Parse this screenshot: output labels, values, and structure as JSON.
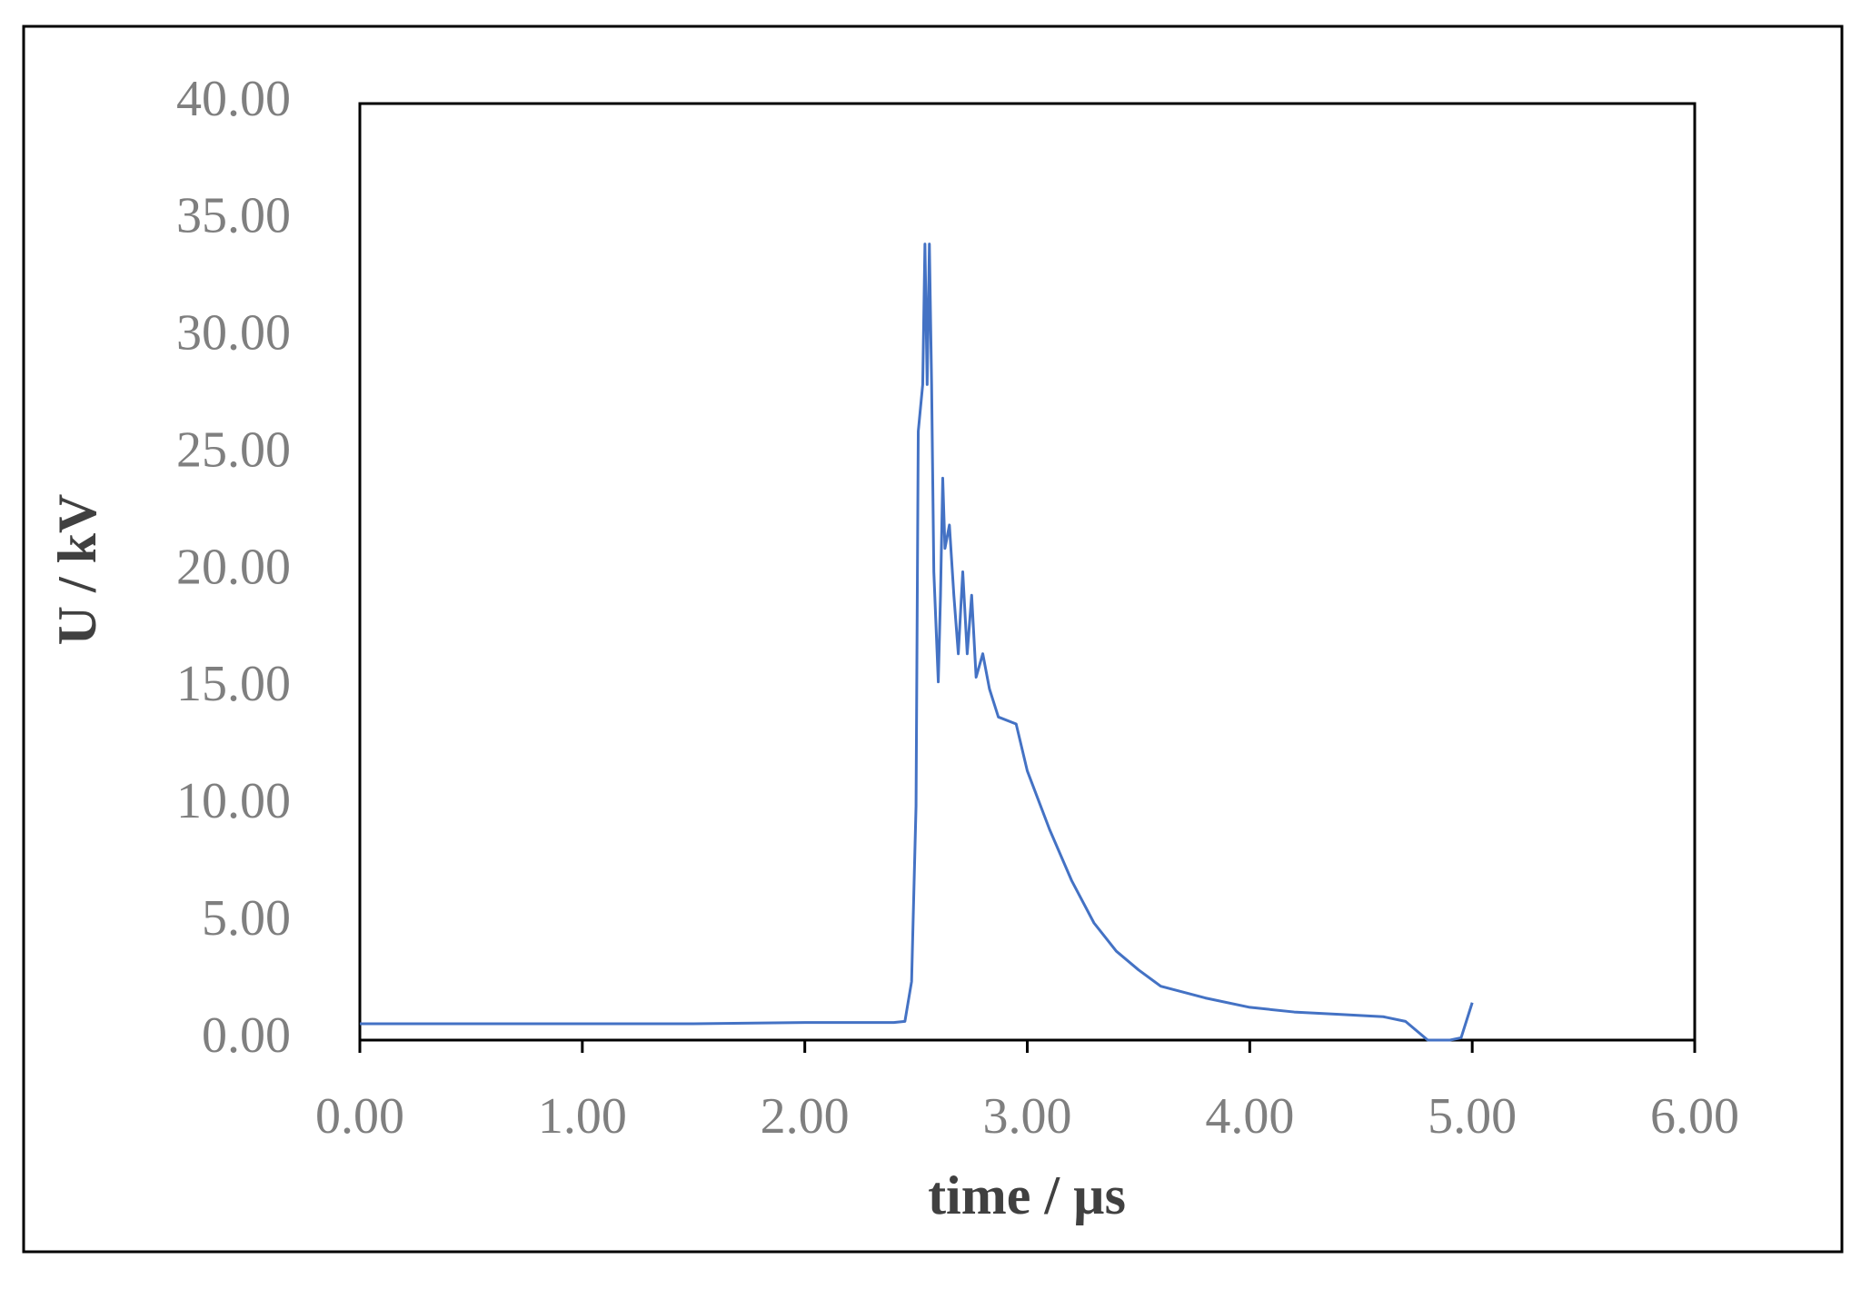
{
  "chart_data": {
    "type": "line",
    "x_label": "time / µs",
    "y_label": "U / kV",
    "x": [
      0,
      0.5,
      1,
      1.5,
      2,
      2.4,
      2.45,
      2.48,
      2.5,
      2.51,
      2.53,
      2.54,
      2.55,
      2.56,
      2.57,
      2.58,
      2.6,
      2.61,
      2.62,
      2.63,
      2.65,
      2.67,
      2.69,
      2.71,
      2.73,
      2.75,
      2.77,
      2.8,
      2.83,
      2.87,
      2.95,
      3.0,
      3.1,
      3.2,
      3.3,
      3.4,
      3.5,
      3.6,
      3.8,
      4.0,
      4.2,
      4.4,
      4.6,
      4.7,
      4.8,
      4.9,
      4.95,
      5.0
    ],
    "series": [
      {
        "name": "U",
        "color": "#4472c4",
        "values": [
          0.7,
          0.7,
          0.7,
          0.7,
          0.75,
          0.75,
          0.8,
          2.5,
          10,
          26,
          28,
          34,
          28,
          34,
          28,
          20,
          15.3,
          19,
          24,
          21,
          22,
          19,
          16.5,
          20,
          16.5,
          19,
          15.5,
          16.5,
          15,
          13.8,
          13.5,
          11.5,
          9,
          6.8,
          5,
          3.8,
          3,
          2.3,
          1.8,
          1.4,
          1.2,
          1.1,
          1.0,
          0.8,
          0.0,
          0.0,
          0.1,
          1.6
        ]
      }
    ],
    "xlim": [
      0,
      6
    ],
    "xticks": [
      {
        "value": 0,
        "label": "0.00"
      },
      {
        "value": 1,
        "label": "1.00"
      },
      {
        "value": 2,
        "label": "2.00"
      },
      {
        "value": 3,
        "label": "3.00"
      },
      {
        "value": 4,
        "label": "4.00"
      },
      {
        "value": 5,
        "label": "5.00"
      },
      {
        "value": 6,
        "label": "6.00"
      }
    ],
    "ylim": [
      0,
      40
    ],
    "yticks": [
      {
        "value": 0,
        "label": "0.00"
      },
      {
        "value": 5,
        "label": "5.00"
      },
      {
        "value": 10,
        "label": "10.00"
      },
      {
        "value": 15,
        "label": "15.00"
      },
      {
        "value": 20,
        "label": "20.00"
      },
      {
        "value": 25,
        "label": "25.00"
      },
      {
        "value": 30,
        "label": "30.00"
      },
      {
        "value": 35,
        "label": "35.00"
      },
      {
        "value": 40,
        "label": "40.00"
      }
    ],
    "grid": false
  }
}
